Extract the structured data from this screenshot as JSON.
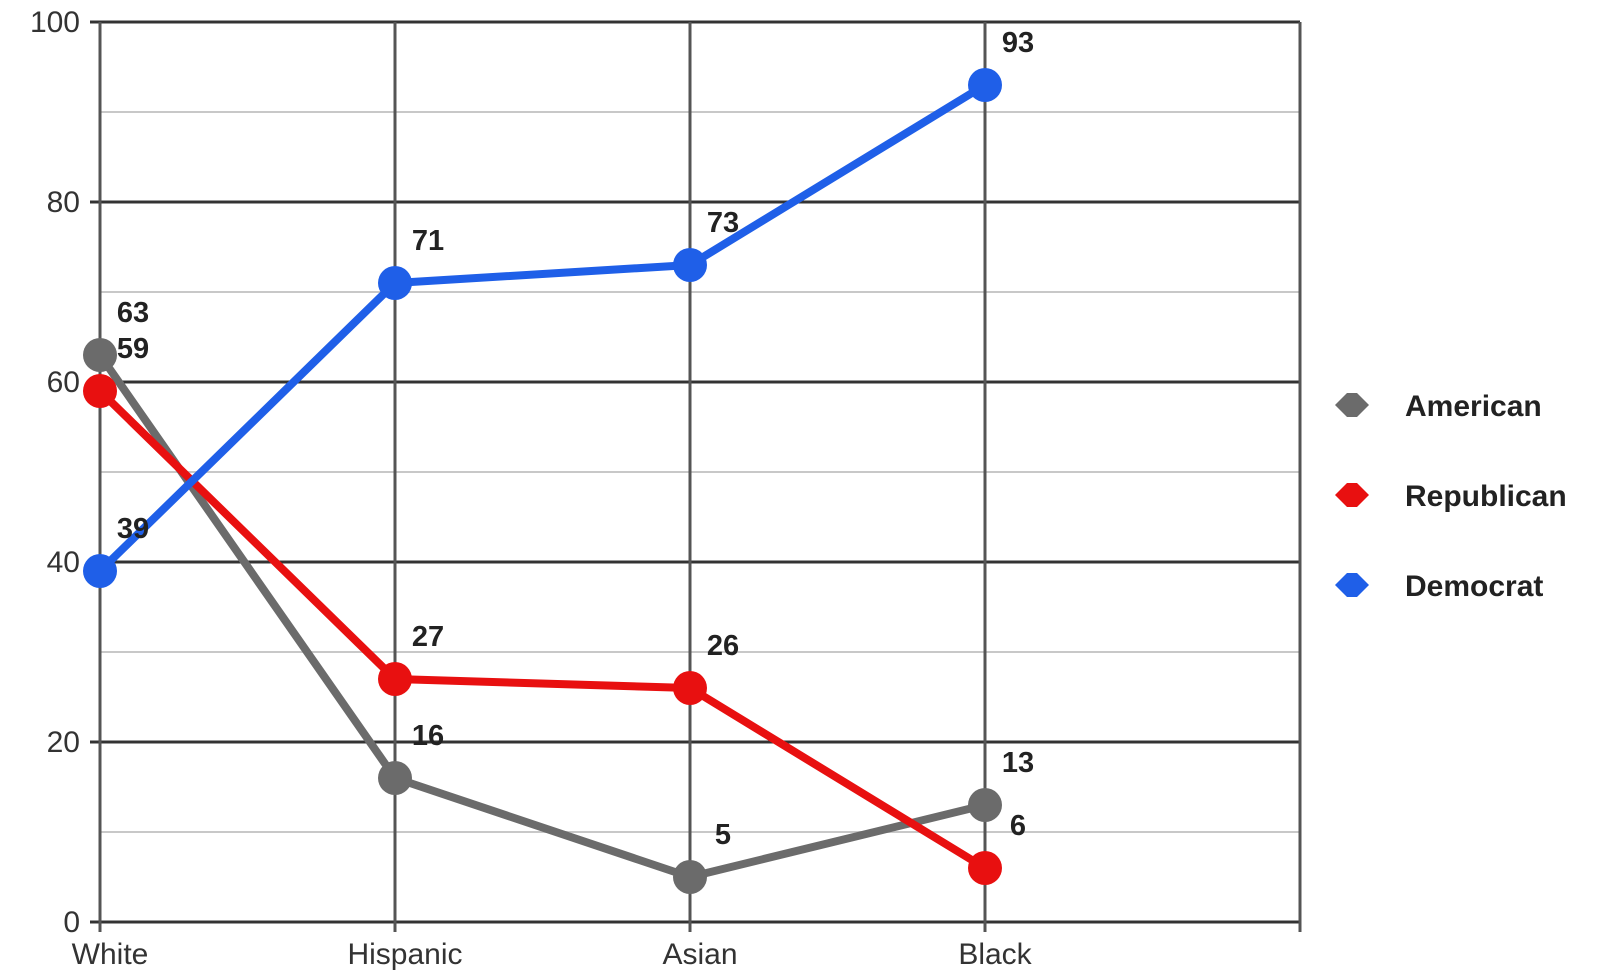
{
  "chart_data": {
    "type": "line",
    "categories": [
      "White",
      "Hispanic",
      "Asian",
      "Black"
    ],
    "ylim": [
      0,
      100
    ],
    "yticks": [
      0,
      20,
      40,
      60,
      80,
      100
    ],
    "grid": true,
    "legend_position": "right",
    "series": [
      {
        "name": "American",
        "color": "#6b6b6b",
        "values": [
          63,
          16,
          5,
          13
        ]
      },
      {
        "name": "Republican",
        "color": "#e81010",
        "values": [
          59,
          27,
          26,
          6
        ]
      },
      {
        "name": "Democrat",
        "color": "#1f5fe8",
        "values": [
          39,
          71,
          73,
          93
        ]
      }
    ]
  }
}
